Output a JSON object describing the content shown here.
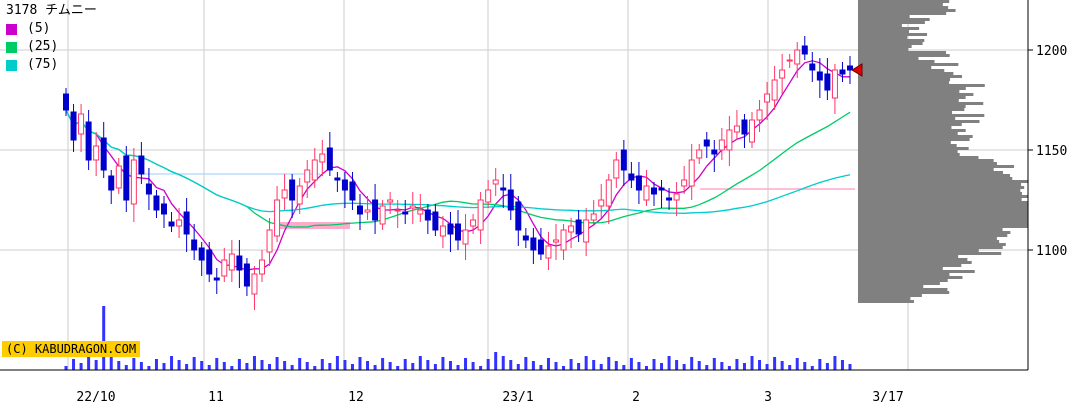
{
  "header": {
    "code": "3178",
    "name": "チムニー"
  },
  "copyright": "(C) KABUDRAGON.COM",
  "legend": [
    {
      "label": "(5)",
      "color": "#cc00cc"
    },
    {
      "label": "(25)",
      "color": "#00cc66"
    },
    {
      "label": "(75)",
      "color": "#00cccc"
    }
  ],
  "chart_data": {
    "type": "candlestick",
    "x_tick_labels": [
      "22/10",
      "11",
      "12",
      "23/1",
      "2",
      "3",
      "3/17"
    ],
    "y_tick_labels": [
      "1100",
      "1150",
      "1200"
    ],
    "ylim": [
      1040,
      1225
    ],
    "grid": true,
    "up_color": "#ff3366",
    "down_color": "#0000cc",
    "volume_color": "#3333ff",
    "volume_profile_color": "#808080",
    "current_price": 1190,
    "closes": [
      1170,
      1155,
      1168,
      1145,
      1152,
      1140,
      1130,
      1142,
      1125,
      1145,
      1138,
      1128,
      1120,
      1118,
      1112,
      1115,
      1108,
      1100,
      1095,
      1088,
      1085,
      1095,
      1098,
      1090,
      1082,
      1088,
      1095,
      1110,
      1125,
      1130,
      1125,
      1132,
      1140,
      1145,
      1148,
      1140,
      1135,
      1130,
      1125,
      1118,
      1120,
      1115,
      1122,
      1125,
      1120,
      1118,
      1122,
      1120,
      1115,
      1110,
      1112,
      1108,
      1105,
      1110,
      1115,
      1125,
      1130,
      1135,
      1130,
      1120,
      1110,
      1105,
      1100,
      1098,
      1102,
      1105,
      1110,
      1112,
      1108,
      1115,
      1118,
      1125,
      1135,
      1145,
      1140,
      1135,
      1130,
      1132,
      1128,
      1130,
      1125,
      1128,
      1135,
      1145,
      1150,
      1152,
      1148,
      1155,
      1160,
      1162,
      1158,
      1165,
      1170,
      1178,
      1185,
      1190,
      1195,
      1200,
      1198,
      1190,
      1185,
      1180,
      1190,
      1188,
      1190
    ],
    "ma_series": [
      {
        "label": "(5)",
        "color": "#cc00cc"
      },
      {
        "label": "(25)",
        "color": "#00cc66"
      },
      {
        "label": "(75)",
        "color": "#00cccc"
      }
    ]
  }
}
